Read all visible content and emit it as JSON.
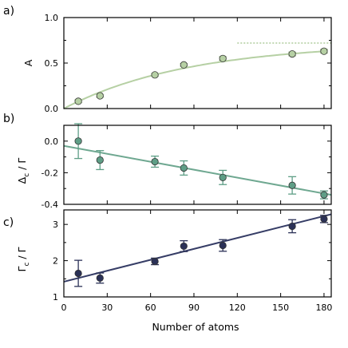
{
  "chart_data": [
    {
      "type": "scatter",
      "panel_label": "a)",
      "ylabel": "A",
      "xlim": [
        0,
        185
      ],
      "ylim": [
        0,
        1.0
      ],
      "yticks": [
        0.0,
        0.5,
        1.0
      ],
      "ytick_labels": [
        "0.0",
        "0.5",
        "1.0"
      ],
      "grid": false,
      "marker_color": "#b6d0a4",
      "line_color": "#b6d0a4",
      "points": [
        {
          "x": 10,
          "y": 0.08,
          "err": 0.015
        },
        {
          "x": 25,
          "y": 0.14,
          "err": 0.015
        },
        {
          "x": 63,
          "y": 0.37,
          "err": 0.015
        },
        {
          "x": 83,
          "y": 0.48,
          "err": 0.015
        },
        {
          "x": 110,
          "y": 0.55,
          "err": 0.02
        },
        {
          "x": 158,
          "y": 0.6,
          "err": 0.02
        },
        {
          "x": 180,
          "y": 0.63,
          "err": 0.02
        }
      ],
      "fit": {
        "kind": "saturation",
        "asymptote": 0.72,
        "rate": 0.0115,
        "x_start": 0,
        "x_end": 180
      },
      "asymptote_line": {
        "y": 0.72,
        "x_start": 120,
        "x_end": 185,
        "style": "dotted"
      }
    },
    {
      "type": "scatter",
      "panel_label": "b)",
      "ylabel": "Δ_c / Γ",
      "xlim": [
        0,
        185
      ],
      "ylim": [
        -0.4,
        0.1
      ],
      "yticks": [
        0.0,
        -0.2,
        -0.4
      ],
      "ytick_labels": [
        "0.0",
        "-0.2",
        "-0.4"
      ],
      "grid": false,
      "marker_color": "#5e9e86",
      "line_color": "#6fa891",
      "points": [
        {
          "x": 10,
          "y": 0.0,
          "err": 0.11
        },
        {
          "x": 25,
          "y": -0.12,
          "err": 0.06
        },
        {
          "x": 63,
          "y": -0.13,
          "err": 0.035
        },
        {
          "x": 83,
          "y": -0.17,
          "err": 0.045
        },
        {
          "x": 110,
          "y": -0.23,
          "err": 0.045
        },
        {
          "x": 158,
          "y": -0.28,
          "err": 0.055
        },
        {
          "x": 180,
          "y": -0.34,
          "err": 0.025
        }
      ],
      "fit": {
        "kind": "linear",
        "x_start": 0,
        "x_end": 185,
        "y_start": -0.03,
        "y_end": -0.34
      }
    },
    {
      "type": "scatter",
      "panel_label": "c)",
      "ylabel": "Γ_c / Γ",
      "xlabel": "Number of atoms",
      "xlim": [
        0,
        185
      ],
      "ylim": [
        1,
        3.4
      ],
      "yticks": [
        1,
        2,
        3
      ],
      "ytick_labels": [
        "1",
        "2",
        "3"
      ],
      "xticks": [
        0,
        30,
        60,
        90,
        120,
        150,
        180
      ],
      "xtick_labels": [
        "0",
        "30",
        "60",
        "90",
        "120",
        "150",
        "180"
      ],
      "grid": false,
      "marker_color": "#2b3157",
      "line_color": "#363d66",
      "points": [
        {
          "x": 10,
          "y": 1.65,
          "err": 0.36
        },
        {
          "x": 25,
          "y": 1.52,
          "err": 0.14
        },
        {
          "x": 63,
          "y": 1.98,
          "err": 0.09
        },
        {
          "x": 83,
          "y": 2.4,
          "err": 0.15
        },
        {
          "x": 110,
          "y": 2.42,
          "err": 0.16
        },
        {
          "x": 158,
          "y": 2.95,
          "err": 0.18
        },
        {
          "x": 180,
          "y": 3.15,
          "err": 0.1
        }
      ],
      "fit": {
        "kind": "linear",
        "x_start": 0,
        "x_end": 185,
        "y_start": 1.42,
        "y_end": 3.28
      }
    }
  ]
}
